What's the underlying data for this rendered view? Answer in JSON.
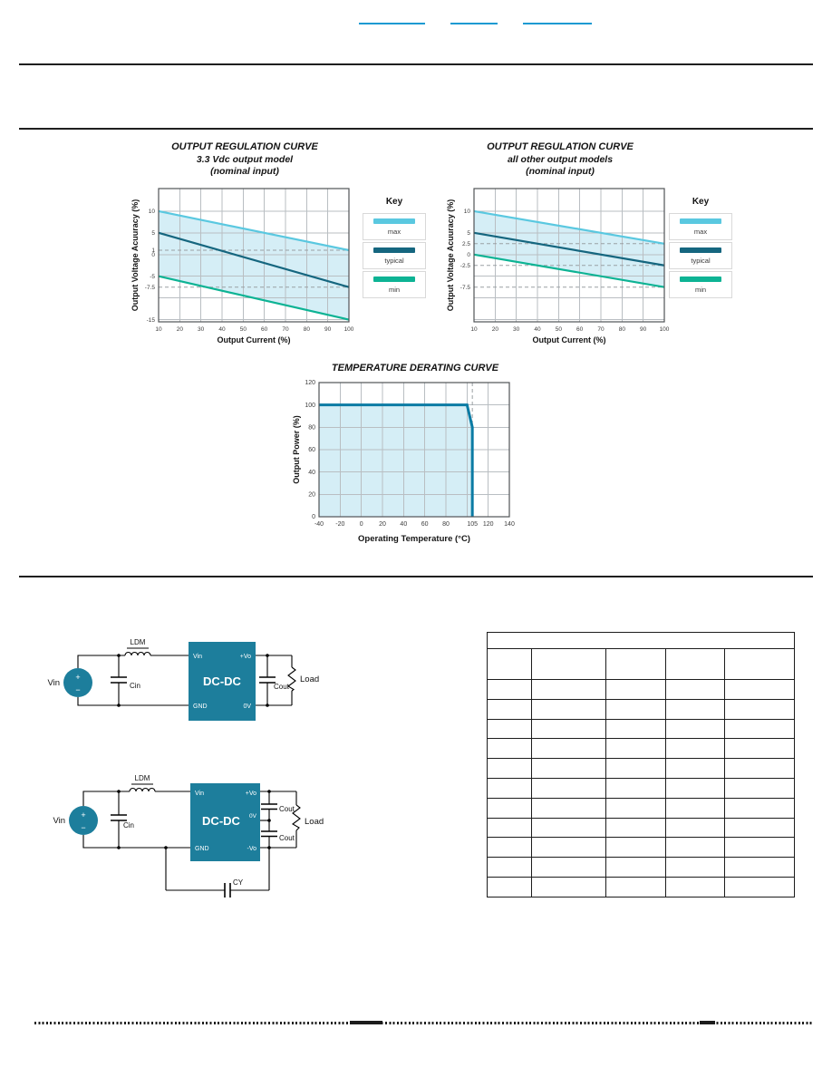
{
  "page": {
    "header_links": [
      {
        "label": ""
      },
      {
        "label": ""
      },
      {
        "label": ""
      }
    ]
  },
  "colors": {
    "accent_teal": "#1d7e9c",
    "link_blue": "#1b9ad2",
    "band_fill": "#d5eef6",
    "max_line": "#5ac8e0",
    "typical_line": "#15667f",
    "min_line": "#0db394",
    "derating_line": "#0b7ba4"
  },
  "chart_data": [
    {
      "id": "reg-33",
      "type": "line",
      "title": "OUTPUT REGULATION CURVE",
      "subtitle": "3.3 Vdc output model",
      "subtitle2": "(nominal input)",
      "xlabel": "Output Current (%)",
      "ylabel": "Output Voltage Acuuracy (%)",
      "xlim": [
        10,
        100
      ],
      "ylim": [
        -15.5,
        15.2
      ],
      "xticks": [
        {
          "v": 10,
          "l": "10"
        },
        {
          "v": 20,
          "l": "20"
        },
        {
          "v": 30,
          "l": "30"
        },
        {
          "v": 40,
          "l": "40"
        },
        {
          "v": 50,
          "l": "50"
        },
        {
          "v": 60,
          "l": "60"
        },
        {
          "v": 70,
          "l": "70"
        },
        {
          "v": 80,
          "l": "80"
        },
        {
          "v": 90,
          "l": "90"
        },
        {
          "v": 100,
          "l": "100"
        }
      ],
      "yticks": [
        {
          "v": 10,
          "l": "10"
        },
        {
          "v": 5,
          "l": "5"
        },
        {
          "v": 1,
          "l": "1"
        },
        {
          "v": 0,
          "l": "0"
        },
        {
          "v": -5,
          "l": "-5"
        },
        {
          "v": -7.5,
          "l": "-7.5"
        },
        {
          "v": -15,
          "l": "-15"
        }
      ],
      "grid_x": [
        20,
        30,
        40,
        50,
        60,
        70,
        80,
        90
      ],
      "grid_y": [
        10,
        5,
        0,
        -5,
        -10,
        -15
      ],
      "dashed_y": [
        1,
        -7.5
      ],
      "band": {
        "upper": "max",
        "lower": "min",
        "color": "#d5eef6"
      },
      "series": [
        {
          "name": "max",
          "color": "#5ac8e0",
          "points": [
            [
              10,
              10
            ],
            [
              100,
              1
            ]
          ]
        },
        {
          "name": "typical",
          "color": "#15667f",
          "points": [
            [
              10,
              5
            ],
            [
              100,
              -7.5
            ]
          ]
        },
        {
          "name": "min",
          "color": "#0db394",
          "points": [
            [
              10,
              -5
            ],
            [
              100,
              -15
            ]
          ]
        }
      ],
      "legend": {
        "title": "Key",
        "entries": [
          "max",
          "typical",
          "min"
        ],
        "position": "right"
      }
    },
    {
      "id": "reg-other",
      "type": "line",
      "title": "OUTPUT REGULATION CURVE",
      "subtitle": "all other output models",
      "subtitle2": "(nominal input)",
      "xlabel": "Output Current (%)",
      "ylabel": "Output Voltage Acuuracy (%)",
      "xlim": [
        10,
        100
      ],
      "ylim": [
        -15.5,
        15.2
      ],
      "xticks": [
        {
          "v": 10,
          "l": "10"
        },
        {
          "v": 20,
          "l": "20"
        },
        {
          "v": 30,
          "l": "30"
        },
        {
          "v": 40,
          "l": "40"
        },
        {
          "v": 50,
          "l": "50"
        },
        {
          "v": 60,
          "l": "60"
        },
        {
          "v": 70,
          "l": "70"
        },
        {
          "v": 80,
          "l": "80"
        },
        {
          "v": 90,
          "l": "90"
        },
        {
          "v": 100,
          "l": "100"
        }
      ],
      "yticks": [
        {
          "v": 10,
          "l": "10"
        },
        {
          "v": 5,
          "l": "5"
        },
        {
          "v": 2.5,
          "l": "2.5"
        },
        {
          "v": 0,
          "l": "0"
        },
        {
          "v": -2.5,
          "l": "-2.5"
        },
        {
          "v": -7.5,
          "l": "-7.5"
        }
      ],
      "grid_x": [
        20,
        30,
        40,
        50,
        60,
        70,
        80,
        90
      ],
      "grid_y": [
        10,
        5,
        0,
        -5,
        -10,
        -15
      ],
      "dashed_y": [
        2.5,
        -2.5,
        -7.5
      ],
      "band": {
        "upper": "max",
        "lower": "min",
        "color": "#d5eef6"
      },
      "series": [
        {
          "name": "max",
          "color": "#5ac8e0",
          "points": [
            [
              10,
              10
            ],
            [
              100,
              2.5
            ]
          ]
        },
        {
          "name": "typical",
          "color": "#15667f",
          "points": [
            [
              10,
              5
            ],
            [
              100,
              -2.5
            ]
          ]
        },
        {
          "name": "min",
          "color": "#0db394",
          "points": [
            [
              10,
              0
            ],
            [
              100,
              -7.5
            ]
          ]
        }
      ],
      "legend": {
        "title": "Key",
        "entries": [
          "max",
          "typical",
          "min"
        ],
        "position": "right"
      }
    },
    {
      "id": "derating",
      "type": "area",
      "title": "TEMPERATURE DERATING CURVE",
      "xlabel": "Operating Temperature (°C)",
      "ylabel": "Output Power (%)",
      "xlim": [
        -40,
        140
      ],
      "ylim": [
        0,
        120
      ],
      "xticks": [
        {
          "v": -40,
          "l": "-40"
        },
        {
          "v": -20,
          "l": "-20"
        },
        {
          "v": 0,
          "l": "0"
        },
        {
          "v": 20,
          "l": "20"
        },
        {
          "v": 40,
          "l": "40"
        },
        {
          "v": 60,
          "l": "60"
        },
        {
          "v": 80,
          "l": "80"
        },
        {
          "v": 105,
          "l": "105"
        },
        {
          "v": 120,
          "l": "120"
        },
        {
          "v": 140,
          "l": "140"
        }
      ],
      "yticks": [
        {
          "v": 0,
          "l": "0"
        },
        {
          "v": 20,
          "l": "20"
        },
        {
          "v": 40,
          "l": "40"
        },
        {
          "v": 60,
          "l": "60"
        },
        {
          "v": 80,
          "l": "80"
        },
        {
          "v": 100,
          "l": "100"
        },
        {
          "v": 120,
          "l": "120"
        }
      ],
      "grid_x": [
        -20,
        0,
        20,
        40,
        60,
        80,
        100,
        120
      ],
      "grid_y": [
        20,
        40,
        60,
        80,
        100
      ],
      "dashed_x": [
        105
      ],
      "fill": {
        "mode": "under",
        "color": "#d5eef6"
      },
      "series": [
        {
          "name": "output power",
          "color": "#0b7ba4",
          "width": 3,
          "points": [
            [
              -40,
              100
            ],
            [
              100,
              100
            ],
            [
              105,
              80
            ],
            [
              105,
              0
            ]
          ]
        }
      ]
    }
  ],
  "circuits": {
    "single_output": {
      "source": "Vin",
      "plus": "+",
      "minus": "−",
      "inductor": "LDM",
      "input_cap": "Cin",
      "block": "DC-DC",
      "pin_vin": "Vin",
      "pin_vo_pos": "+Vo",
      "pin_gnd": "GND",
      "pin_0v": "0V",
      "output_cap": "Cout",
      "load": "Load"
    },
    "dual_output": {
      "source": "Vin",
      "plus": "+",
      "minus": "−",
      "inductor": "LDM",
      "input_cap": "Cin",
      "block": "DC-DC",
      "pin_vin": "Vin",
      "pin_vo_pos": "+Vo",
      "pin_0v": "0V",
      "pin_gnd": "GND",
      "pin_vo_neg": "-Vo",
      "output_cap_top": "Cout",
      "output_cap_bottom": "Cout",
      "load": "Load",
      "y_cap": "CY"
    }
  },
  "table": {
    "title": "",
    "columns": [
      "",
      "",
      "",
      "",
      ""
    ],
    "row_count": 11
  }
}
